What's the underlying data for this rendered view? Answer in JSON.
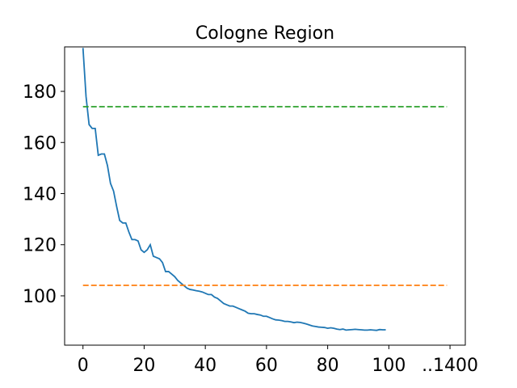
{
  "chart_data": {
    "type": "line",
    "title": "Cologne Region",
    "xlim": [
      -6,
      125
    ],
    "ylim": [
      80.7,
      197.4
    ],
    "xticks": [
      0,
      20,
      40,
      60,
      80,
      100,
      {
        "value": 120,
        "label": "..1400"
      }
    ],
    "yticks": [
      100,
      120,
      140,
      160,
      180
    ],
    "series": [
      {
        "color": "#1f77b4",
        "dash": false,
        "x": [
          0,
          1,
          2,
          3,
          4,
          5,
          6,
          7,
          8,
          9,
          10,
          11,
          12,
          13,
          14,
          15,
          16,
          17,
          18,
          19,
          20,
          21,
          22,
          23,
          24,
          25,
          26,
          27,
          28,
          29,
          30,
          31,
          32,
          33,
          34,
          35,
          36,
          37,
          38,
          39,
          40,
          41,
          42,
          43,
          44,
          45,
          46,
          47,
          48,
          49,
          50,
          51,
          52,
          53,
          54,
          55,
          56,
          57,
          58,
          59,
          60,
          61,
          62,
          63,
          64,
          65,
          66,
          67,
          68,
          69,
          70,
          71,
          72,
          73,
          74,
          75,
          76,
          77,
          78,
          79,
          80,
          81,
          82,
          83,
          84,
          85,
          86,
          87,
          88,
          89,
          90,
          91,
          92,
          93,
          94,
          95,
          96,
          97,
          98,
          99
        ],
        "values": [
          197,
          178,
          167,
          165.5,
          165.5,
          155,
          155.5,
          155.5,
          151,
          144,
          141,
          135,
          129.5,
          128.5,
          128.5,
          125,
          122,
          122,
          121.5,
          118,
          117,
          118,
          120,
          115.5,
          115,
          114.5,
          113,
          109.5,
          109.5,
          108.5,
          107.5,
          106,
          105,
          104,
          103,
          102.5,
          102.3,
          102,
          101.8,
          101.5,
          101,
          100.5,
          100.5,
          99.5,
          99,
          98,
          97,
          96.5,
          96,
          96,
          95.5,
          95,
          94.5,
          94,
          93.2,
          93,
          93,
          92.7,
          92.5,
          92,
          92,
          91.5,
          91,
          90.6,
          90.5,
          90.3,
          90,
          90,
          89.8,
          89.5,
          89.7,
          89.6,
          89.3,
          89,
          88.6,
          88.2,
          88,
          87.8,
          87.7,
          87.6,
          87.3,
          87.5,
          87.3,
          87,
          86.8,
          87,
          86.6,
          86.7,
          86.8,
          86.9,
          86.8,
          86.7,
          86.6,
          86.6,
          86.7,
          86.6,
          86.5,
          86.8,
          86.7,
          86.7
        ]
      },
      {
        "color": "#ff7f0e",
        "dash": true,
        "x": [
          0,
          119
        ],
        "values": [
          104.1,
          104.1
        ]
      },
      {
        "color": "#2ca02c",
        "dash": true,
        "x": [
          0,
          119
        ],
        "values": [
          174,
          174
        ]
      }
    ]
  }
}
